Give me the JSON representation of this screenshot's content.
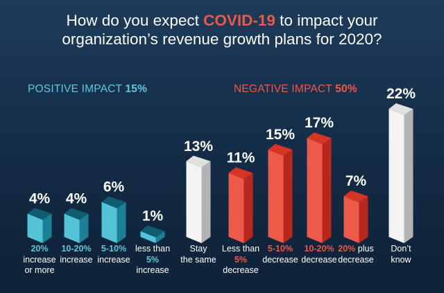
{
  "title": {
    "line1_pre": "How do you expect ",
    "line1_highlight": "COVID-19",
    "line1_post": " to impact your",
    "line2": "organization’s revenue growth plans for 2020?"
  },
  "groups": {
    "positive": {
      "label": "POSITIVE IMPACT",
      "value": "15%"
    },
    "negative": {
      "label": "NEGATIVE IMPACT",
      "value": "50%"
    }
  },
  "colors": {
    "positive_front": "#55c3d6",
    "positive_side": "#1c7f94",
    "positive_top": "#0e5c70",
    "negative_front": "#ee5a4a",
    "negative_side": "#b8271d",
    "negative_top": "#d63526",
    "neutral_front": "#f4f4f4",
    "neutral_side": "#b3b3b3",
    "neutral_top": "#e0e0e0",
    "label_positive": "#5fc8dc",
    "label_negative": "#ef5747"
  },
  "chart_data": {
    "type": "bar",
    "title": "How do you expect COVID-19 to impact your organization’s revenue growth plans for 2020?",
    "xlabel": "",
    "ylabel": "",
    "ylim": [
      0,
      22
    ],
    "categories": [
      "20% increase or more",
      "10-20% increase",
      "5-10% increase",
      "less than 5% increase",
      "Stay the same",
      "Less than 5% decrease",
      "5-10% decrease",
      "10-20% decrease",
      "20% plus decrease",
      "Don’t know"
    ],
    "values": [
      4,
      4,
      6,
      1,
      13,
      11,
      15,
      17,
      7,
      22
    ],
    "value_labels": [
      "4%",
      "4%",
      "6%",
      "1%",
      "13%",
      "11%",
      "15%",
      "17%",
      "7%",
      "22%"
    ],
    "groups": [
      "positive",
      "positive",
      "positive",
      "positive",
      "neutral",
      "negative",
      "negative",
      "negative",
      "negative",
      "neutral"
    ],
    "category_labels": [
      [
        {
          "t": "20%",
          "em": true
        },
        {
          "t": "increase"
        },
        {
          "t": "or more"
        }
      ],
      [
        {
          "t": "10-20%",
          "em": true
        },
        {
          "t": "increase"
        }
      ],
      [
        {
          "t": "5-10%",
          "em": true
        },
        {
          "t": "increase"
        }
      ],
      [
        {
          "t": "less than"
        },
        {
          "t": "5%",
          "em": true
        },
        {
          "t": "increase"
        }
      ],
      [
        {
          "t": "Stay"
        },
        {
          "t": "the same"
        }
      ],
      [
        {
          "t": "Less than"
        },
        {
          "t": "5%",
          "em": true
        },
        {
          "t": "decrease"
        }
      ],
      [
        {
          "t": "5-10%",
          "em": true
        },
        {
          "t": "decrease"
        }
      ],
      [
        {
          "t": "10-20%",
          "em": true
        },
        {
          "t": "decrease"
        }
      ],
      [
        {
          "t": "20%",
          "em": true,
          "inline": " plus"
        },
        {
          "t": "decrease"
        }
      ],
      [
        {
          "t": "Don’t"
        },
        {
          "t": "know"
        }
      ]
    ]
  }
}
